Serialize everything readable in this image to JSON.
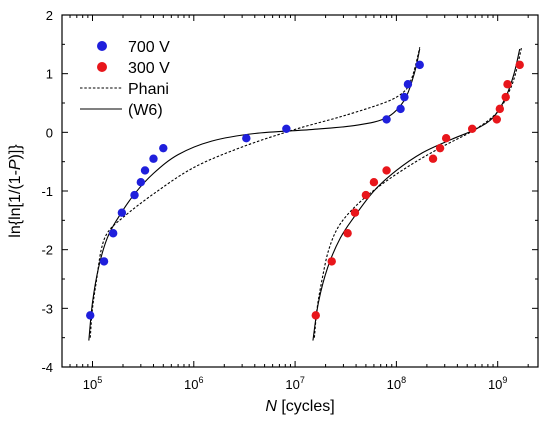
{
  "chart_data": {
    "type": "scatter",
    "xlabel": {
      "italic": "N",
      "rest": " [cycles]"
    },
    "ylabel": {
      "a": "ln{ln[1/(1-",
      "italic": "P",
      "b": ")]}"
    },
    "xscale": "log",
    "xlim": [
      50000,
      2500000000
    ],
    "ylim": [
      -4,
      2
    ],
    "x_ticks": [
      {
        "value": 100000,
        "base": "10",
        "exp": "5"
      },
      {
        "value": 1000000,
        "base": "10",
        "exp": "6"
      },
      {
        "value": 10000000,
        "base": "10",
        "exp": "7"
      },
      {
        "value": 100000000,
        "base": "10",
        "exp": "8"
      },
      {
        "value": 1000000000,
        "base": "10",
        "exp": "9"
      }
    ],
    "y_ticks": [
      "-4",
      "-3",
      "-2",
      "-1",
      "0",
      "1",
      "2"
    ],
    "legend_position": "top-left",
    "series": [
      {
        "name": "700 V",
        "kind": "points",
        "color": "#1f1fdc",
        "points": [
          [
            95000,
            -3.12
          ],
          [
            130000,
            -2.2
          ],
          [
            160000,
            -1.72
          ],
          [
            195000,
            -1.37
          ],
          [
            260000,
            -1.07
          ],
          [
            300000,
            -0.85
          ],
          [
            330000,
            -0.65
          ],
          [
            400000,
            -0.45
          ],
          [
            500000,
            -0.27
          ],
          [
            3300000,
            -0.1
          ],
          [
            8200000,
            0.06
          ],
          [
            80000000,
            0.22
          ],
          [
            110000000,
            0.4
          ],
          [
            120000000,
            0.6
          ],
          [
            130000000,
            0.82
          ],
          [
            170000000,
            1.15
          ]
        ]
      },
      {
        "name": "300 V",
        "kind": "points",
        "color": "#e8161b",
        "points": [
          [
            16000000,
            -3.12
          ],
          [
            23000000,
            -2.2
          ],
          [
            33000000,
            -1.72
          ],
          [
            39000000,
            -1.37
          ],
          [
            50000000,
            -1.07
          ],
          [
            60000000,
            -0.85
          ],
          [
            80000000,
            -0.65
          ],
          [
            230000000,
            -0.45
          ],
          [
            270000000,
            -0.27
          ],
          [
            310000000,
            -0.1
          ],
          [
            560000000,
            0.06
          ],
          [
            980000000,
            0.22
          ],
          [
            1050000000,
            0.4
          ],
          [
            1200000000,
            0.6
          ],
          [
            1250000000,
            0.82
          ],
          [
            1650000000,
            1.15
          ]
        ]
      },
      {
        "name": "Phani",
        "kind": "dashed-line",
        "color": "#000000",
        "curves": [
          [
            [
              95000,
              -3.5
            ],
            [
              100000,
              -3.0
            ],
            [
              110000,
              -2.5
            ],
            [
              122000,
              -2.0
            ],
            [
              142000,
              -1.7
            ],
            [
              200000,
              -1.45
            ],
            [
              400000,
              -1.05
            ],
            [
              1000000,
              -0.6
            ],
            [
              3000000,
              -0.25
            ],
            [
              10000000,
              0.05
            ],
            [
              30000000,
              0.28
            ],
            [
              80000000,
              0.52
            ],
            [
              120000000,
              0.7
            ],
            [
              140000000,
              0.9
            ],
            [
              155000000,
              1.15
            ],
            [
              170000000,
              1.45
            ]
          ],
          [
            [
              15500000,
              -3.5
            ],
            [
              16500000,
              -3.0
            ],
            [
              18500000,
              -2.5
            ],
            [
              21500000,
              -2.0
            ],
            [
              27000000,
              -1.6
            ],
            [
              40000000,
              -1.25
            ],
            [
              70000000,
              -0.9
            ],
            [
              140000000,
              -0.55
            ],
            [
              280000000,
              -0.25
            ],
            [
              600000000,
              0.05
            ],
            [
              1000000000,
              0.35
            ],
            [
              1300000000,
              0.7
            ],
            [
              1500000000,
              1.0
            ],
            [
              1720000000,
              1.45
            ]
          ]
        ]
      },
      {
        "name": "(W6)",
        "kind": "solid-line",
        "color": "#000000",
        "curves": [
          [
            [
              92000,
              -3.55
            ],
            [
              100000,
              -2.9
            ],
            [
              115000,
              -2.3
            ],
            [
              140000,
              -1.8
            ],
            [
              180000,
              -1.45
            ],
            [
              260000,
              -1.05
            ],
            [
              400000,
              -0.7
            ],
            [
              700000,
              -0.38
            ],
            [
              1500000,
              -0.15
            ],
            [
              4000000,
              -0.02
            ],
            [
              15000000,
              0.05
            ],
            [
              40000000,
              0.12
            ],
            [
              80000000,
              0.25
            ],
            [
              120000000,
              0.55
            ],
            [
              150000000,
              1.0
            ],
            [
              170000000,
              1.42
            ]
          ],
          [
            [
              15000000,
              -3.55
            ],
            [
              17000000,
              -2.9
            ],
            [
              21000000,
              -2.3
            ],
            [
              28000000,
              -1.8
            ],
            [
              38000000,
              -1.45
            ],
            [
              60000000,
              -1.0
            ],
            [
              100000000,
              -0.65
            ],
            [
              180000000,
              -0.35
            ],
            [
              350000000,
              -0.12
            ],
            [
              600000000,
              0.05
            ],
            [
              900000000,
              0.25
            ],
            [
              1200000000,
              0.6
            ],
            [
              1450000000,
              1.0
            ],
            [
              1650000000,
              1.42
            ]
          ]
        ]
      }
    ]
  }
}
